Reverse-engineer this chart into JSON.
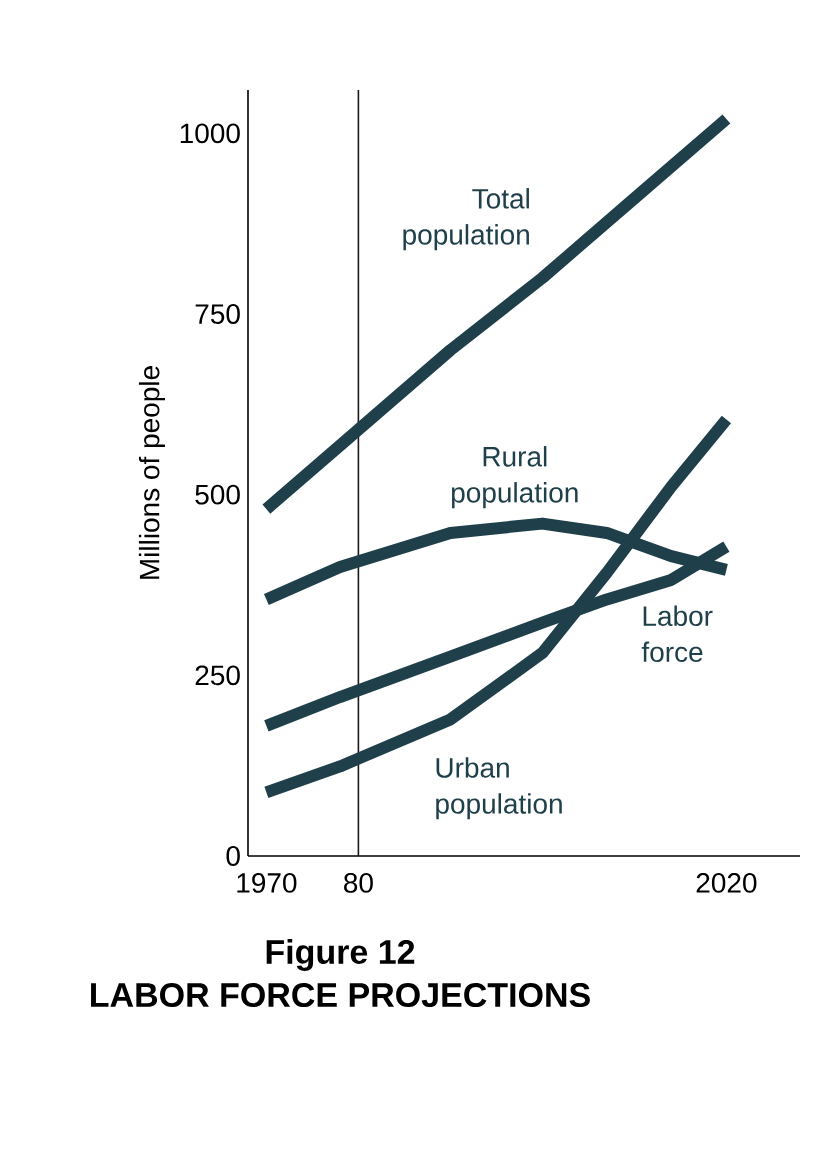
{
  "chart_data": {
    "type": "line",
    "title": "Figure 12",
    "subtitle": "LABOR FORCE PROJECTIONS",
    "ylabel": "Millions of people",
    "xlim": [
      1968,
      2028
    ],
    "ylim": [
      0,
      1060
    ],
    "xticks": [
      1970,
      {
        "value": 1980,
        "label": "80"
      },
      2020
    ],
    "yticks": [
      0,
      250,
      500,
      750,
      1000
    ],
    "ref_lines": [
      {
        "axis": "x",
        "value": 1980,
        "color": "#1a1a1a"
      }
    ],
    "grid": false,
    "legend": false,
    "marker": "none",
    "line_style": "solid",
    "series": [
      {
        "name": "Total population",
        "color": "#1f3f4a",
        "x": [
          1970,
          1980,
          1990,
          2000,
          2010,
          2020
        ],
        "values": [
          480,
          590,
          700,
          800,
          910,
          1020
        ]
      },
      {
        "name": "Rural population",
        "color": "#1f3f4a",
        "x": [
          1970,
          1978,
          1990,
          2000,
          2007,
          2014,
          2020
        ],
        "values": [
          355,
          400,
          447,
          460,
          447,
          415,
          396
        ]
      },
      {
        "name": "Labor force",
        "color": "#1f3f4a",
        "x": [
          1970,
          1978,
          1990,
          2000,
          2007,
          2014,
          2020
        ],
        "values": [
          180,
          220,
          276,
          323,
          355,
          382,
          428
        ]
      },
      {
        "name": "Urban population",
        "color": "#1f3f4a",
        "x": [
          1970,
          1978,
          1990,
          2000,
          2007,
          2014,
          2020
        ],
        "values": [
          88,
          124,
          189,
          281,
          392,
          511,
          604
        ]
      }
    ]
  }
}
